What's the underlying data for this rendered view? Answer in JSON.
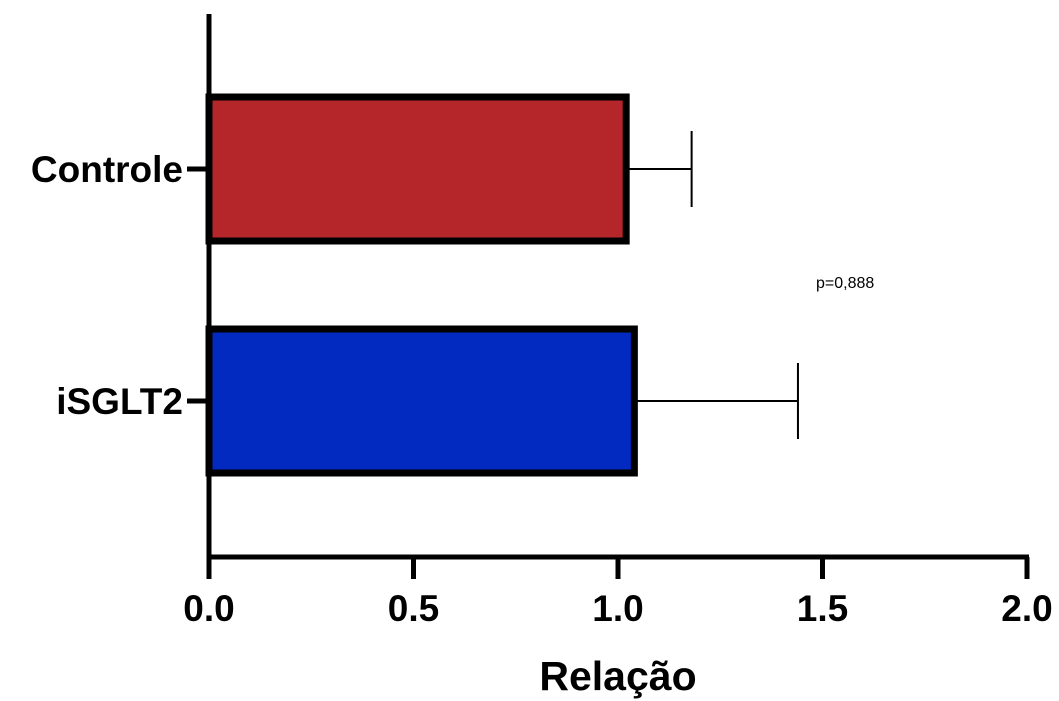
{
  "chart_data": {
    "type": "bar",
    "orientation": "horizontal",
    "categories": [
      "Controle",
      "iSGLT2"
    ],
    "values": [
      1.02,
      1.04
    ],
    "errors": [
      0.16,
      0.4
    ],
    "colors": [
      "#B5262B",
      "#0229C0"
    ],
    "xlabel": "Relação",
    "ylabel": "",
    "xlim": [
      0,
      2
    ],
    "xticks": [
      "0.0",
      "0.5",
      "1.0",
      "1.5",
      "2.0"
    ],
    "annotation": "p=0,888",
    "grid": false,
    "legend": "none"
  }
}
